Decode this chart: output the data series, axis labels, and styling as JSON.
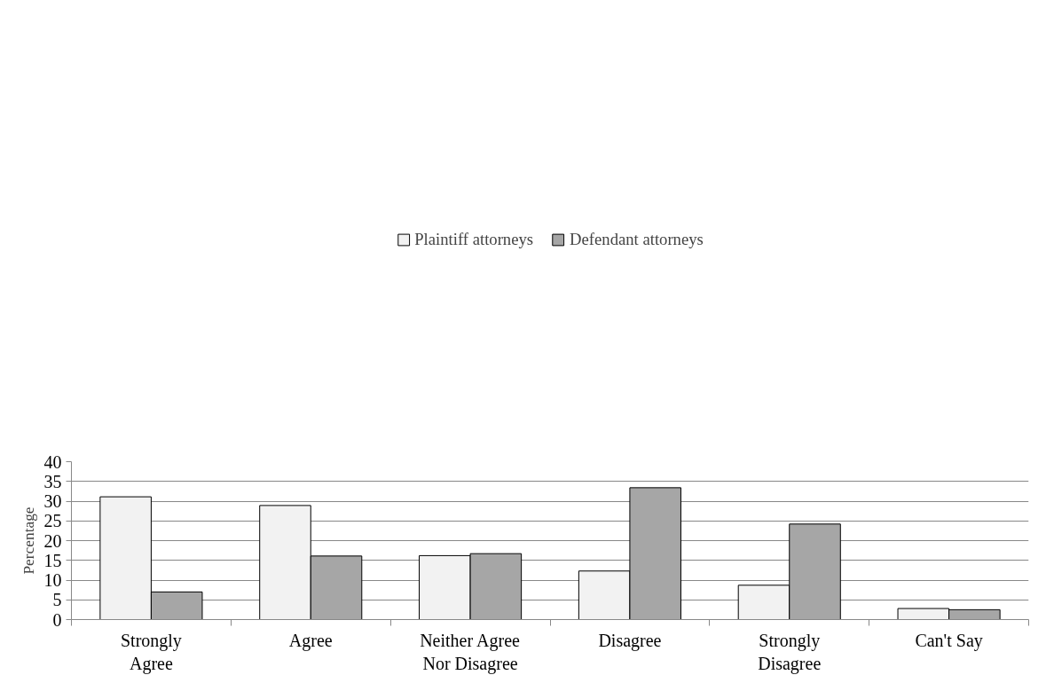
{
  "chart_data": {
    "type": "bar",
    "ylabel": "Percentage",
    "categories": [
      "Strongly\nAgree",
      "Agree",
      "Neither Agree\nNor Disagree",
      "Disagree",
      "Strongly\nDisagree",
      "Can't Say"
    ],
    "series": [
      {
        "name": "Plaintiff attorneys",
        "color": "#f2f2f2",
        "values": [
          31.1,
          28.9,
          16.2,
          12.3,
          8.7,
          2.8
        ]
      },
      {
        "name": "Defendant attorneys",
        "color": "#a6a6a6",
        "values": [
          7.0,
          16.1,
          16.7,
          33.4,
          24.2,
          2.5
        ]
      }
    ],
    "ylim": [
      0,
      40
    ],
    "yticks": [
      0,
      5,
      10,
      15,
      20,
      25,
      30,
      35,
      40
    ],
    "grid": "y",
    "legend": "top"
  }
}
